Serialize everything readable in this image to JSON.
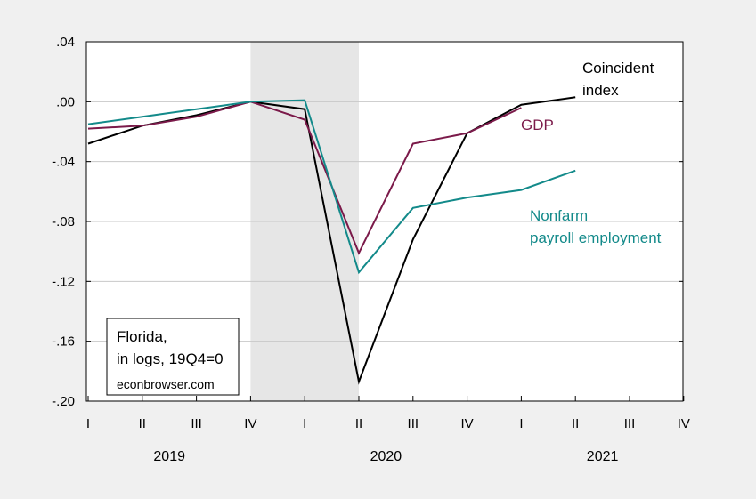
{
  "chart_data": {
    "type": "line",
    "x": [
      "2019Q1",
      "2019Q2",
      "2019Q3",
      "2019Q4",
      "2020Q1",
      "2020Q2",
      "2020Q3",
      "2020Q4",
      "2021Q1",
      "2021Q2",
      "2021Q3",
      "2021Q4"
    ],
    "quarter_tick_labels": [
      "I",
      "II",
      "III",
      "IV",
      "I",
      "II",
      "III",
      "IV",
      "I",
      "II",
      "III",
      "IV"
    ],
    "year_labels": [
      {
        "label": "2019",
        "start_quarter": 0,
        "end_quarter": 3
      },
      {
        "label": "2020",
        "start_quarter": 4,
        "end_quarter": 7
      },
      {
        "label": "2021",
        "start_quarter": 8,
        "end_quarter": 11
      }
    ],
    "ylim": [
      -0.2,
      0.04
    ],
    "y_ticks": [
      0.04,
      0.0,
      -0.04,
      -0.08,
      -0.12,
      -0.16,
      -0.2
    ],
    "y_tick_labels": [
      ".04",
      ".00",
      "-.04",
      "-.08",
      "-.12",
      "-.16",
      "-.20"
    ],
    "grid": true,
    "recession_shading": {
      "start": "2019Q4",
      "end": "2020Q2",
      "color": "#e6e6e6"
    },
    "series": [
      {
        "name": "Coincident index",
        "label_lines": [
          "Coincident",
          "index"
        ],
        "color": "#000000",
        "values": [
          -0.028,
          -0.016,
          -0.009,
          0.0,
          -0.005,
          -0.187,
          -0.092,
          -0.021,
          -0.002,
          0.003,
          null,
          null
        ]
      },
      {
        "name": "GDP",
        "label_lines": [
          "GDP"
        ],
        "color": "#7b1a4a",
        "values": [
          -0.018,
          -0.016,
          -0.01,
          0.0,
          -0.012,
          -0.101,
          -0.028,
          -0.021,
          -0.004,
          null,
          null,
          null
        ]
      },
      {
        "name": "Nonfarm payroll employment",
        "label_lines": [
          "Nonfarm",
          "payroll employment"
        ],
        "color": "#138a8a",
        "values": [
          -0.015,
          -0.01,
          -0.005,
          0.0,
          0.001,
          -0.114,
          -0.071,
          -0.064,
          -0.059,
          -0.046,
          null,
          null
        ]
      }
    ]
  },
  "note": {
    "lines": [
      "Florida,",
      "in logs, 19Q4=0"
    ],
    "source": "econbrowser.com"
  }
}
